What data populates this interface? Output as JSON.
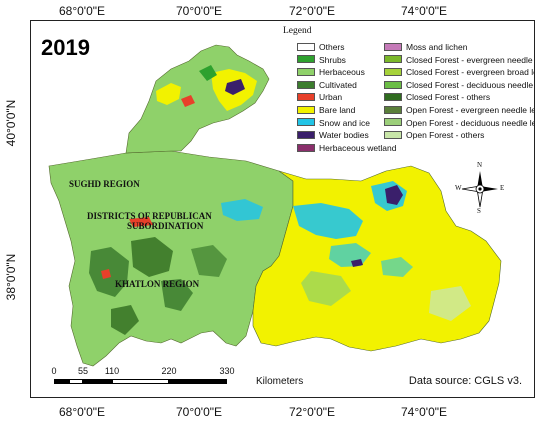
{
  "map": {
    "year": "2019",
    "longitude_labels": [
      "68°0'0\"E",
      "70°0'0\"E",
      "72°0'0\"E",
      "74°0'0\"E"
    ],
    "latitude_labels": [
      "40°0'0\"N",
      "38°0'0\"N"
    ],
    "regions": {
      "sughd": "SUGHD REGION",
      "drs_line1": "DISTRICTS OF REPUBLICAN",
      "drs_line2": "SUBORDINATION",
      "khatlon": "KHATLON REGION"
    },
    "north_arrow": {
      "n": "N",
      "s": "S",
      "e": "E",
      "w": "W"
    },
    "scale": {
      "ticks": [
        "0",
        "55",
        "110",
        "220",
        "330"
      ],
      "unit": "Kilometers"
    },
    "source": "Data source: CGLS v3."
  },
  "legend": {
    "title": "Legend",
    "column1": [
      {
        "label": "Others",
        "color": "#ffffff"
      },
      {
        "label": "Shrubs",
        "color": "#2ea12e"
      },
      {
        "label": "Herbaceous",
        "color": "#8fd16a"
      },
      {
        "label": "Cultivated",
        "color": "#3c7d2e"
      },
      {
        "label": "Urban",
        "color": "#e8402a"
      },
      {
        "label": "Bare land",
        "color": "#f2f200"
      },
      {
        "label": "Snow and ice",
        "color": "#22c4e6"
      },
      {
        "label": "Water bodies",
        "color": "#3a1f6b"
      },
      {
        "label": "Herbaceous wetland",
        "color": "#8a2f6b"
      }
    ],
    "column2": [
      {
        "label": "Moss and lichen",
        "color": "#c57ab8"
      },
      {
        "label": "Closed Forest - evergreen needle leaf",
        "color": "#7ab82a"
      },
      {
        "label": "Closed Forest - evergreen broad leaf",
        "color": "#a6d23a"
      },
      {
        "label": "Closed Forest - deciduous needle leaf",
        "color": "#6bbd45"
      },
      {
        "label": "Closed Forest - others",
        "color": "#2f6b1f"
      },
      {
        "label": "Open Forest - evergreen needle leaf",
        "color": "#5a7f3a"
      },
      {
        "label": "Open Forest - deciduous needle leaf",
        "color": "#9ccf7a"
      },
      {
        "label": "Open Forest - others",
        "color": "#c8e6a8"
      }
    ]
  }
}
